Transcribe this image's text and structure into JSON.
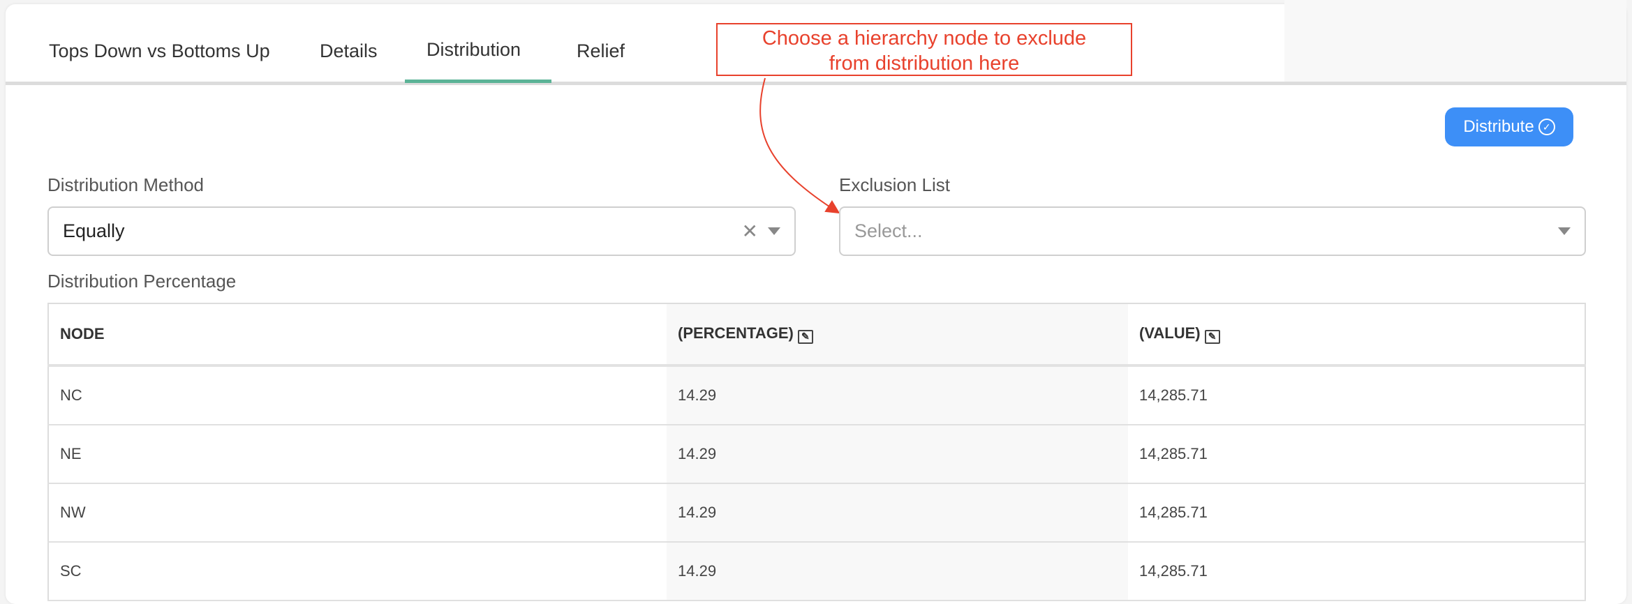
{
  "tabs": [
    {
      "label": "Tops Down vs Bottoms Up",
      "active": false
    },
    {
      "label": "Details",
      "active": false
    },
    {
      "label": "Distribution",
      "active": true
    },
    {
      "label": "Relief",
      "active": false
    }
  ],
  "annotation": {
    "line1": "Choose a hierarchy node to exclude",
    "line2": "from distribution here",
    "color": "#e8412c"
  },
  "distribute_button": {
    "label": "Distribute",
    "icon": "check-circle-icon",
    "color": "#3d8ff7"
  },
  "distribution_method": {
    "label": "Distribution Method",
    "value": "Equally"
  },
  "exclusion_list": {
    "label": "Exclusion List",
    "placeholder": "Select..."
  },
  "table": {
    "title": "Distribution Percentage",
    "headers": [
      "NODE",
      "(PERCENTAGE)",
      "(VALUE)"
    ],
    "rows": [
      [
        "NC",
        "14.29",
        "14,285.71"
      ],
      [
        "NE",
        "14.29",
        "14,285.71"
      ],
      [
        "NW",
        "14.29",
        "14,285.71"
      ],
      [
        "SC",
        "14.29",
        "14,285.71"
      ]
    ]
  },
  "accent": "#5bb396"
}
